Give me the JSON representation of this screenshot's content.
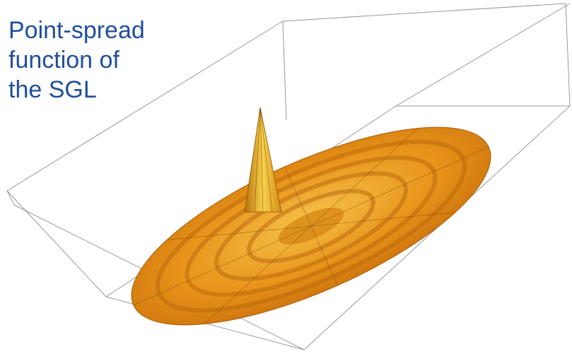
{
  "caption": {
    "lines": [
      "Point-spread",
      "function of",
      "the SGL"
    ]
  }
}
